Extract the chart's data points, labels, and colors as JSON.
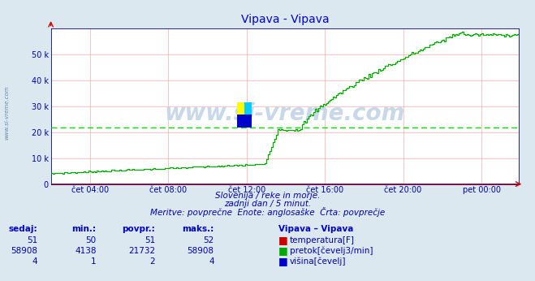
{
  "title": "Vipava - Vipava",
  "bg_color": "#dce8f0",
  "plot_bg_color": "#ffffff",
  "grid_color": "#ffaaaa",
  "avg_line_color": "#00dd00",
  "avg_line_value": 21732,
  "xlim": [
    0,
    287
  ],
  "ylim": [
    0,
    60000
  ],
  "yticks": [
    0,
    10000,
    20000,
    30000,
    40000,
    50000
  ],
  "ytick_labels": [
    "0",
    "10 k",
    "20 k",
    "30 k",
    "40 k",
    "50 k"
  ],
  "xtick_positions": [
    24,
    72,
    120,
    168,
    216,
    264
  ],
  "xtick_labels": [
    "čet 04:00",
    "čet 08:00",
    "čet 12:00",
    "čet 16:00",
    "čet 20:00",
    "pet 00:00"
  ],
  "watermark": "www.si-vreme.com",
  "side_label": "www.si-vreme.com",
  "subtitle1": "Slovenija / reke in morje.",
  "subtitle2": "zadnji dan / 5 minut.",
  "subtitle3": "Meritve: povprečne  Enote: anglosaške  Črta: povprečje",
  "temp_color": "#cc0000",
  "flow_color": "#00aa00",
  "height_color": "#0000cc",
  "temp_sedaj": 51,
  "temp_min": 50,
  "temp_povpr": 51,
  "temp_maks": 52,
  "flow_sedaj": 58908,
  "flow_min": 4138,
  "flow_povpr": 21732,
  "flow_maks": 58908,
  "height_sedaj": 4,
  "height_min": 1,
  "height_povpr": 2,
  "height_maks": 4,
  "header_color": "#0000cc",
  "text_color": "#0000aa",
  "table_header": "Vipava – Vipava"
}
